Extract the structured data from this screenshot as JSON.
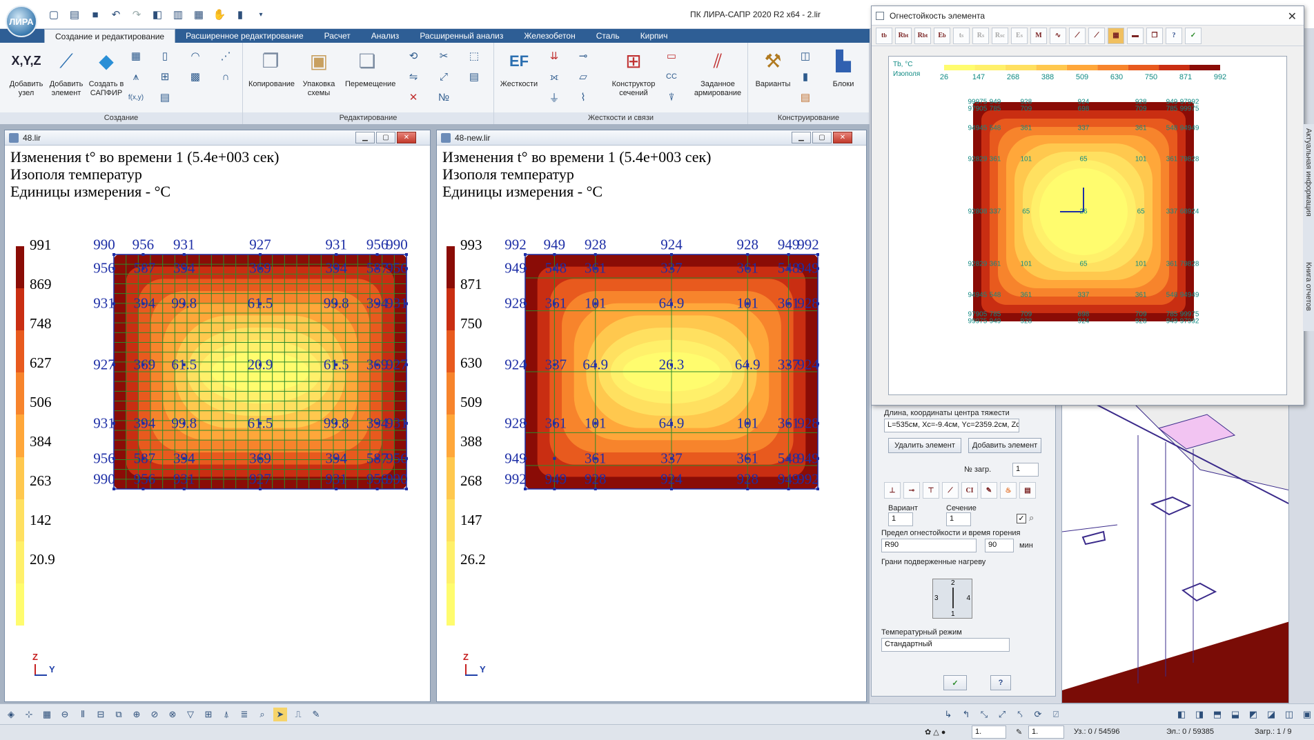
{
  "window": {
    "title": "ПК ЛИРА-САПР  2020 R2 x64 - 2.lir"
  },
  "ribbon": {
    "tabs": [
      "Создание и редактирование",
      "Расширенное редактирование",
      "Расчет",
      "Анализ",
      "Расширенный анализ",
      "Железобетон",
      "Сталь",
      "Кирпич"
    ],
    "groups": {
      "create": "Создание",
      "edit": "Редактирование",
      "stiff": "Жесткости и связи",
      "construct": "Конструирование"
    },
    "buttons": {
      "add_node": "Добавить узел",
      "add_element": "Добавить элемент",
      "create_sapfir": "Создать в САПФИР",
      "copy": "Копирование",
      "pack": "Упаковка схемы",
      "move": "Перемещение",
      "stiffness": "Жесткости",
      "section_builder": "Конструктор сечений",
      "reinforcement": "Заданное армирование",
      "variants": "Варианты",
      "blocks": "Блоки"
    },
    "xyz": "X,Y,Z"
  },
  "doc_left": {
    "title": "48.lir",
    "line1": "Изменения t° во времени 1 (5.4е+003 сек)",
    "line2": "Изополя температур",
    "line3": "Единицы измерения - °С",
    "legend": [
      "991",
      "869",
      "748",
      "627",
      "506",
      "384",
      "263",
      "142",
      "20.9"
    ],
    "top_labels": [
      "990",
      "956",
      "931",
      "927",
      "931",
      "956",
      "990"
    ],
    "grid_labels": [
      [
        "956",
        "587",
        "394",
        "369",
        "394",
        "587",
        "956"
      ],
      [
        "931",
        "394",
        "99.8",
        "61.5",
        "99.8",
        "394",
        "931"
      ],
      [
        "927",
        "369",
        "61.5",
        "20.9",
        "61.5",
        "369",
        "927"
      ],
      [
        "931",
        "394",
        "99.8",
        "61.5",
        "99.8",
        "394",
        "931"
      ],
      [
        "956",
        "587",
        "394",
        "369",
        "394",
        "587",
        "956"
      ],
      [
        "990",
        "956",
        "931",
        "927",
        "931",
        "956",
        "990"
      ]
    ]
  },
  "doc_right": {
    "title": "48-new.lir",
    "line1": "Изменения t° во времени 1 (5.4е+003 сек)",
    "line2": "Изополя температур",
    "line3": "Единицы измерения - °С",
    "legend": [
      "993",
      "871",
      "750",
      "630",
      "509",
      "388",
      "268",
      "147",
      "26.2"
    ],
    "top_labels": [
      "992",
      "949",
      "928",
      "924",
      "928",
      "949",
      "992"
    ],
    "grid_labels": [
      [
        "949",
        "548",
        "361",
        "337",
        "361",
        "548",
        "949"
      ],
      [
        "928",
        "361",
        "101",
        "64.9",
        "101",
        "361",
        "928"
      ],
      [
        "924",
        "337",
        "64.9",
        "26.3",
        "64.9",
        "337",
        "924"
      ],
      [
        "928",
        "361",
        "101",
        "64.9",
        "101",
        "361",
        "928"
      ],
      [
        "949",
        "",
        "361",
        "337",
        "361",
        "548",
        "949"
      ],
      [
        "992",
        "949",
        "928",
        "924",
        "928",
        "949",
        "992"
      ]
    ]
  },
  "fire_dialog": {
    "title": "Огнестойкость элемента",
    "legend_title": "Tb, °С",
    "legend_sub": "Изополя",
    "legend": [
      "26",
      "147",
      "268",
      "388",
      "509",
      "630",
      "750",
      "871",
      "992"
    ],
    "rows": [
      [
        "99975",
        "949",
        "928",
        "924",
        "928",
        "949",
        "97992"
      ],
      [
        "97905",
        "785",
        "709",
        "698",
        "709",
        "785",
        "99975"
      ],
      [
        "94945",
        "548",
        "361",
        "337",
        "361",
        "548",
        "94949"
      ],
      [
        "92829",
        "361",
        "101",
        "65",
        "101",
        "361",
        "79828"
      ],
      [
        "92808",
        "337",
        "65",
        "26",
        "65",
        "337",
        "68924"
      ],
      [
        "92829",
        "361",
        "101",
        "65",
        "101",
        "361",
        "79828"
      ],
      [
        "94945",
        "548",
        "361",
        "337",
        "361",
        "548",
        "94949"
      ],
      [
        "97905",
        "785",
        "709",
        "698",
        "709",
        "785",
        "99975"
      ],
      [
        "99975",
        "949",
        "928",
        "924",
        "928",
        "949",
        "97992"
      ]
    ]
  },
  "side_panel": {
    "centroid_label": "Длина, координаты центра тяжести",
    "centroid_value": "L=535см, Xc=-9.4см, Yc=2359.2см, Zc=-277.5",
    "delete_btn": "Удалить элемент",
    "add_btn": "Добавить элемент",
    "load_label": "№ загр.",
    "load_value": "1",
    "variant_label": "Вариант",
    "variant_value": "1",
    "section_label": "Сечение",
    "section_value": "1",
    "limit_label": "Предел огнестойкости и время горения",
    "limit_value": "R90",
    "time_value": "90",
    "time_unit": "мин",
    "faces_label": "Грани подверженные нагреву",
    "regime_label": "Температурный режим",
    "regime_value": "Стандартный",
    "ok_icon": "check-icon",
    "help_icon": "question-icon"
  },
  "vtabs": [
    "Актуальная информация",
    "Книга отчетов"
  ],
  "status": {
    "nodes": "Уз.: 0 / 54596",
    "elements": "Эл.: 0 / 59385",
    "loads": "Загр.: 1 / 9",
    "combo1": "1.",
    "combo2": "1."
  },
  "colors": {
    "contour": [
      "#fffc6e",
      "#fff06a",
      "#ffe060",
      "#ffc84e",
      "#ffa73a",
      "#f7842c",
      "#e85a1e",
      "#c92e12",
      "#8a0c06"
    ]
  }
}
